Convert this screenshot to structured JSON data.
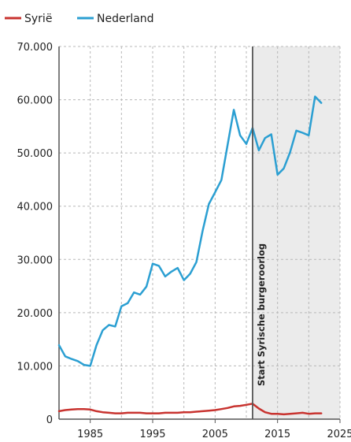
{
  "chart_data": {
    "type": "line",
    "xlim": [
      1980,
      2025
    ],
    "ylim": [
      0,
      70000
    ],
    "xticks": [
      1985,
      1995,
      2005,
      2015,
      2025
    ],
    "xtick_labels": [
      "1985",
      "1995",
      "2005",
      "2015",
      "2025"
    ],
    "yticks": [
      0,
      10000,
      20000,
      30000,
      40000,
      50000,
      60000,
      70000
    ],
    "ytick_labels": [
      "0",
      "10.000",
      "20.000",
      "30.000",
      "40.000",
      "50.000",
      "60.000",
      "70.000"
    ],
    "grid": true,
    "legend_position": "top-left",
    "legend": [
      "Syrië",
      "Nederland"
    ],
    "shaded_region": [
      2011,
      2025
    ],
    "annotation": {
      "x": 2011,
      "text": "Start Syrische burgeroorlog"
    },
    "series": [
      {
        "name": "Syrië",
        "color": "#c8332f",
        "x": [
          1980,
          1981,
          1982,
          1983,
          1984,
          1985,
          1986,
          1987,
          1988,
          1989,
          1990,
          1991,
          1992,
          1993,
          1994,
          1995,
          1996,
          1997,
          1998,
          1999,
          2000,
          2001,
          2002,
          2003,
          2004,
          2005,
          2006,
          2007,
          2008,
          2009,
          2010,
          2011,
          2012,
          2013,
          2014,
          2015,
          2016,
          2017,
          2018,
          2019,
          2020,
          2021,
          2022
        ],
        "values": [
          1500,
          1700,
          1800,
          1900,
          1900,
          1800,
          1500,
          1300,
          1200,
          1100,
          1100,
          1200,
          1200,
          1200,
          1100,
          1100,
          1100,
          1200,
          1200,
          1200,
          1300,
          1300,
          1400,
          1500,
          1600,
          1700,
          1900,
          2100,
          2400,
          2500,
          2700,
          2900,
          2000,
          1300,
          1000,
          1000,
          900,
          1000,
          1100,
          1200,
          1000,
          1100,
          1100
        ]
      },
      {
        "name": "Nederland",
        "color": "#2b9fd2",
        "x": [
          1980,
          1981,
          1982,
          1983,
          1984,
          1985,
          1986,
          1987,
          1988,
          1989,
          1990,
          1991,
          1992,
          1993,
          1994,
          1995,
          1996,
          1997,
          1998,
          1999,
          2000,
          2001,
          2002,
          2003,
          2004,
          2005,
          2006,
          2007,
          2008,
          2009,
          2010,
          2011,
          2012,
          2013,
          2014,
          2015,
          2016,
          2017,
          2018,
          2019,
          2020,
          2021,
          2022
        ],
        "values": [
          13900,
          11800,
          11300,
          10900,
          10200,
          10000,
          13900,
          16700,
          17700,
          17400,
          21200,
          21800,
          23800,
          23400,
          24900,
          29200,
          28800,
          26800,
          27700,
          28400,
          26100,
          27300,
          29500,
          35400,
          40400,
          42600,
          44900,
          51500,
          58100,
          53300,
          51700,
          54700,
          50500,
          52800,
          53500,
          45900,
          47100,
          50100,
          54200,
          53800,
          53300,
          60600,
          59400
        ]
      }
    ]
  }
}
